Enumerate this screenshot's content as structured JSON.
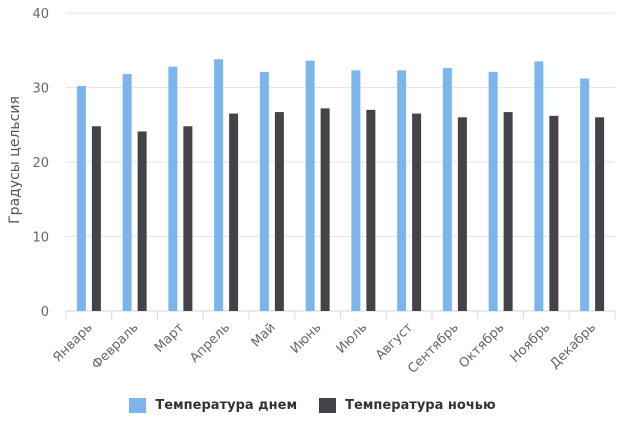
{
  "chart_data": {
    "type": "bar",
    "categories": [
      "Январь",
      "Февраль",
      "Март",
      "Апрель",
      "Май",
      "Июнь",
      "Июль",
      "Август",
      "Сентябрь",
      "Октябрь",
      "Ноябрь",
      "Декабрь"
    ],
    "series": [
      {
        "name": "Температура днем",
        "color": "#7cb5ec",
        "values": [
          30.2,
          31.8,
          32.8,
          33.8,
          32.1,
          33.6,
          32.3,
          32.3,
          32.6,
          32.1,
          33.5,
          31.2
        ]
      },
      {
        "name": "Температура ночью",
        "color": "#434348",
        "values": [
          24.8,
          24.1,
          24.8,
          26.5,
          26.7,
          27.2,
          27.0,
          26.5,
          26.0,
          26.7,
          26.2,
          26.0
        ]
      }
    ],
    "title": "",
    "xlabel": "",
    "ylabel": "Градусы цельсия",
    "ylim": [
      0,
      40
    ],
    "yticks": [
      0,
      10,
      20,
      30,
      40
    ],
    "grid": true,
    "legend_position": "bottom"
  }
}
